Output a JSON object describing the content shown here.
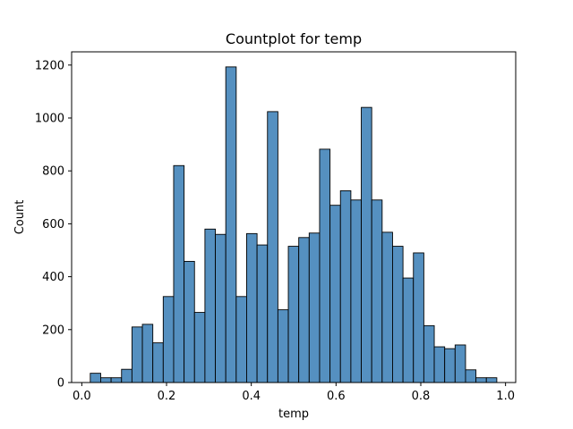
{
  "chart_data": {
    "type": "bar",
    "title": "Countplot for temp",
    "xlabel": "temp",
    "ylabel": "Count",
    "xlim": [
      -0.024,
      1.024
    ],
    "ylim": [
      0,
      1250
    ],
    "bin_width": 0.0246,
    "bin_start": 0.02,
    "values": [
      35,
      18,
      18,
      50,
      210,
      220,
      150,
      325,
      820,
      458,
      265,
      580,
      560,
      1193,
      325,
      563,
      520,
      1024,
      275,
      515,
      548,
      565,
      882,
      670,
      725,
      690,
      1040,
      690,
      568,
      515,
      395,
      490,
      215,
      135,
      128,
      142,
      48,
      18,
      18
    ],
    "x_ticks": [
      0.0,
      0.2,
      0.4,
      0.6,
      0.8,
      1.0
    ],
    "x_tick_labels": [
      "0.0",
      "0.2",
      "0.4",
      "0.6",
      "0.8",
      "1.0"
    ],
    "y_ticks": [
      0,
      200,
      400,
      600,
      800,
      1000,
      1200
    ],
    "y_tick_labels": [
      "0",
      "200",
      "400",
      "600",
      "800",
      "1000",
      "1200"
    ],
    "bar_color": "#5590c0",
    "bar_edge_color": "#000000",
    "grid": false
  }
}
